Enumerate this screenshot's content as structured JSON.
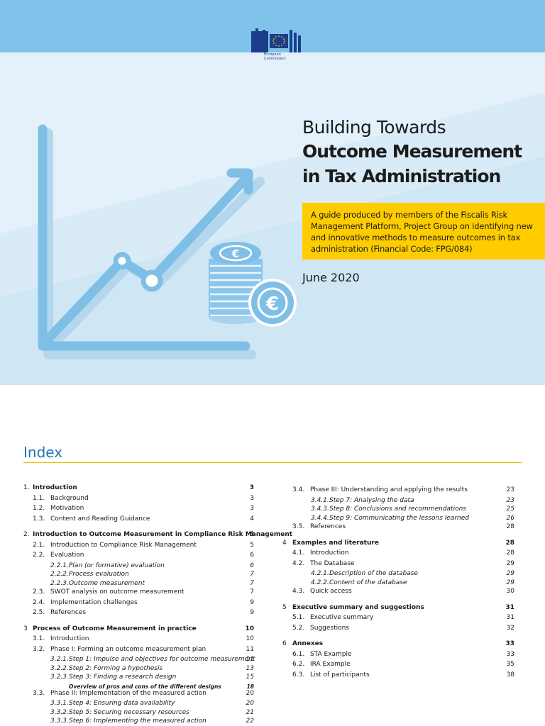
{
  "header": {
    "logo_line1": "European",
    "logo_line2": "Commission"
  },
  "title": {
    "line1": "Building Towards",
    "line2": "Outcome Measurement",
    "line3": "in Tax Administration"
  },
  "subtitle": "A guide produced by members of the Fiscalis Risk Management Platform, Project Group on identifying new and innovative methods to measure outcomes in tax administration (Financial Code: FPG/084)",
  "date": "June 2020",
  "colors": {
    "hero_bg": "#cfe6f5",
    "top_band": "#7fc3ea",
    "accent_yellow": "#ffcc00",
    "index_blue": "#1f74b4",
    "eu_blue": "#1b3d8c"
  },
  "icons": [
    "eu-flag-icon",
    "growth-chart-icon",
    "euro-coins-icon"
  ],
  "index_title": "Index",
  "toc_left": [
    {
      "num": "1.",
      "title": "Introduction",
      "page": "3",
      "level": 1
    },
    {
      "num": "1.1.",
      "title": "Background",
      "page": "3",
      "level": 2
    },
    {
      "num": "1.2.",
      "title": "Motivation",
      "page": "3",
      "level": 2
    },
    {
      "num": "1.3.",
      "title": "Content and Reading Guidance",
      "page": "4",
      "level": 2
    },
    {
      "num": "2.",
      "title": "Introduction to Outcome Measurement in Compliance Risk Management",
      "page": "5",
      "level": 1
    },
    {
      "num": "2.1.",
      "title": "Introduction to Compliance Risk Management",
      "page": "5",
      "level": 2
    },
    {
      "num": "2.2.",
      "title": "Evaluation",
      "page": "6",
      "level": 2
    },
    {
      "num": "2.2.1.",
      "title": "Plan (or formative) evaluation",
      "page": "6",
      "level": 3
    },
    {
      "num": "2.2.2.",
      "title": "Process evaluation",
      "page": "7",
      "level": 3
    },
    {
      "num": "2.2.3.",
      "title": "Outcome measurement",
      "page": "7",
      "level": 3
    },
    {
      "num": "2.3.",
      "title": "SWOT analysis on outcome measurement",
      "page": "7",
      "level": 2
    },
    {
      "num": "2.4.",
      "title": "Implementation challenges",
      "page": "9",
      "level": 2
    },
    {
      "num": "2.5.",
      "title": "References",
      "page": "9",
      "level": 2
    },
    {
      "num": "3",
      "title": "Process of Outcome Measurement in practice",
      "page": "10",
      "level": 1
    },
    {
      "num": "3.1.",
      "title": "Introduction",
      "page": "10",
      "level": 2
    },
    {
      "num": "3.2.",
      "title": "Phase I: Forming an outcome measurement plan",
      "page": "11",
      "level": 2
    },
    {
      "num": "3.2.1.",
      "title": "Step 1: Impulse and objectives for outcome measurement",
      "page": "11",
      "level": 3
    },
    {
      "num": "3.2.2.",
      "title": "Step 2: Forming a hypothesis",
      "page": "13",
      "level": 3
    },
    {
      "num": "3.2.3.",
      "title": "Step 3: Finding a research design",
      "page": "15",
      "level": 3
    },
    {
      "num": "",
      "title": "Overview of pros and cons of the different designs",
      "page": "18",
      "level": 4
    },
    {
      "num": "3.3.",
      "title": "Phase II: Implementation of the measured action",
      "page": "20",
      "level": 2
    },
    {
      "num": "3.3.1.",
      "title": "Step 4: Ensuring data availability",
      "page": "20",
      "level": 3
    },
    {
      "num": "3.3.2.",
      "title": "Step 5: Securing necessary resources",
      "page": "21",
      "level": 3
    },
    {
      "num": "3.3.3.",
      "title": "Step 6: Implementing the measured action",
      "page": "22",
      "level": 3
    }
  ],
  "toc_right": [
    {
      "num": "3.4.",
      "title": "Phase III: Understanding and applying the results",
      "page": "23",
      "level": 2
    },
    {
      "num": "3.4.1.",
      "title": "Step 7: Analysing the data",
      "page": "23",
      "level": 3
    },
    {
      "num": "3.4.3.",
      "title": "Step 8: Conclusions and recommendations",
      "page": "25",
      "level": 3
    },
    {
      "num": "3.4.4.",
      "title": "Step 9: Communicating the lessons learned",
      "page": "26",
      "level": 3
    },
    {
      "num": "3.5.",
      "title": "References",
      "page": "28",
      "level": 2
    },
    {
      "num": "4",
      "title": "Examples and literature",
      "page": "28",
      "level": 1
    },
    {
      "num": "4.1.",
      "title": "Introduction",
      "page": "28",
      "level": 2
    },
    {
      "num": "4.2.",
      "title": "The Database",
      "page": "29",
      "level": 2
    },
    {
      "num": "4.2.1.",
      "title": "Description of the database",
      "page": "29",
      "level": 3
    },
    {
      "num": "4.2.2.",
      "title": "Content of the database",
      "page": "29",
      "level": 3
    },
    {
      "num": "4.3.",
      "title": "Quick access",
      "page": "30",
      "level": 2
    },
    {
      "num": "5",
      "title": "Executive summary and suggestions",
      "page": "31",
      "level": 1
    },
    {
      "num": "5.1.",
      "title": "Executive summary",
      "page": "31",
      "level": 2
    },
    {
      "num": "5.2.",
      "title": "Suggestions",
      "page": "32",
      "level": 2
    },
    {
      "num": "6",
      "title": "Annexes",
      "page": "33",
      "level": 1
    },
    {
      "num": "6.1.",
      "title": "STA Example",
      "page": "33",
      "level": 2
    },
    {
      "num": "6.2.",
      "title": "IRA Example",
      "page": "35",
      "level": 2
    },
    {
      "num": "6.3.",
      "title": "List of participants",
      "page": "38",
      "level": 2
    }
  ]
}
